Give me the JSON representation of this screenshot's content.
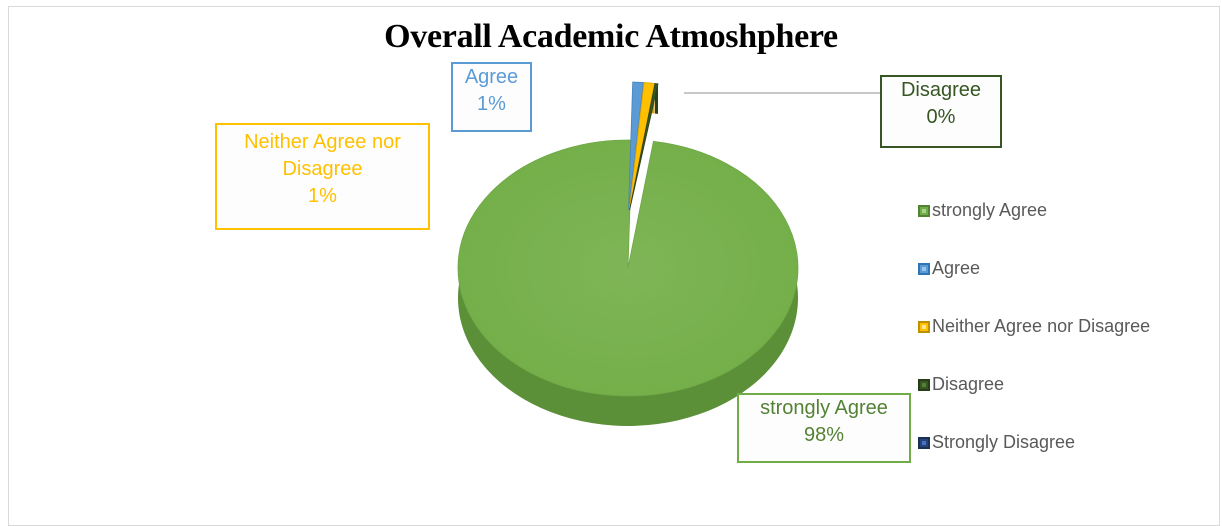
{
  "chart_data": {
    "type": "pie",
    "title": "Overall Academic Atmoshphere",
    "categories": [
      "strongly Agree",
      "Agree",
      "Neither Agree nor Disagree",
      "Disagree",
      "Strongly Disagree"
    ],
    "values": [
      98,
      1,
      1,
      0,
      0
    ],
    "value_labels": [
      "98%",
      "1%",
      "1%",
      "0%",
      ""
    ],
    "colors": [
      "#70ad47",
      "#5b9bd5",
      "#ffc000",
      "#375623",
      "#264478"
    ],
    "legend_position": "right",
    "style": "3d-pie"
  }
}
